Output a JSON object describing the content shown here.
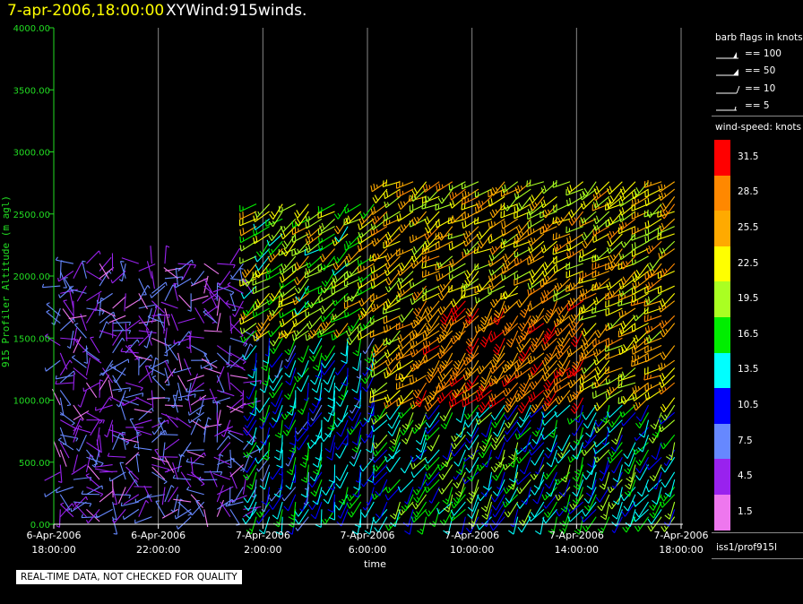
{
  "header": {
    "datetime": "7-apr-2006,18:00:00",
    "plot_title": "XYWind:915winds."
  },
  "footer": {
    "quality_notice": "REAL-TIME DATA, NOT CHECKED FOR QUALITY"
  },
  "legend": {
    "barb_title": "barb flags in knots",
    "barb_items": [
      "== 100",
      "== 50",
      "== 10",
      "== 5"
    ],
    "speed_title": "wind-speed: knots",
    "speed_levels": [
      {
        "label": "31.5",
        "color": "#ff0000"
      },
      {
        "label": "28.5",
        "color": "#ff8800"
      },
      {
        "label": "25.5",
        "color": "#ffaa00"
      },
      {
        "label": "22.5",
        "color": "#ffff00"
      },
      {
        "label": "19.5",
        "color": "#aaff22"
      },
      {
        "label": "16.5",
        "color": "#00ee00"
      },
      {
        "label": "13.5",
        "color": "#00ffff"
      },
      {
        "label": "10.5",
        "color": "#0000ff"
      },
      {
        "label": "7.5",
        "color": "#6688ff"
      },
      {
        "label": "4.5",
        "color": "#9922ee"
      },
      {
        "label": "1.5",
        "color": "#ee77ee"
      }
    ],
    "source": "iss1/prof915l"
  },
  "chart_data": {
    "type": "scatter",
    "subtype": "wind-barb time-height",
    "ylabel": "915 Profiler Altitude (m agl)",
    "xlabel": "time",
    "ylim": [
      0,
      4000
    ],
    "yticks": [
      "0.00",
      "500.00",
      "1000.00",
      "1500.00",
      "2000.00",
      "2500.00",
      "3000.00",
      "3500.00",
      "4000.00"
    ],
    "x_ticks": [
      {
        "date": "6-Apr-2006",
        "time": "18:00:00"
      },
      {
        "date": "6-Apr-2006",
        "time": "22:00:00"
      },
      {
        "date": "7-Apr-2006",
        "time": "2:00:00"
      },
      {
        "date": "7-Apr-2006",
        "time": "6:00:00"
      },
      {
        "date": "7-Apr-2006",
        "time": "10:00:00"
      },
      {
        "date": "7-Apr-2006",
        "time": "14:00:00"
      },
      {
        "date": "7-Apr-2006",
        "time": "18:00:00"
      }
    ],
    "xlim_hours_from_start": [
      0,
      24
    ],
    "grid": "vertical",
    "profile_interval_hours": 0.5,
    "speed_units": "knots",
    "color_scale": "wind-speed: knots",
    "barb_spacing_m": 60,
    "wind_regimes": [
      {
        "t_start": 0.0,
        "t_end": 7.5,
        "z_top": 2100,
        "speed_kt": [
          2,
          9
        ],
        "direction_deg": "variable"
      },
      {
        "t_start": 7.5,
        "t_end": 12.5,
        "z_top": 1500,
        "speed_kt": [
          8,
          17
        ],
        "direction_deg": 200
      },
      {
        "t_start": 7.5,
        "t_end": 12.5,
        "z_top": 2600,
        "speed_kt": [
          14,
          26
        ],
        "direction_deg": 230
      },
      {
        "t_start": 12.5,
        "t_end": 24.0,
        "z_top": 1000,
        "speed_kt": [
          9,
          20
        ],
        "direction_deg": 210
      },
      {
        "t_start": 14.0,
        "t_end": 20.5,
        "z_top": 1800,
        "speed_kt": [
          24,
          32
        ],
        "direction_deg": 220
      },
      {
        "t_start": 12.5,
        "t_end": 24.0,
        "z_top": 2800,
        "speed_kt": [
          19,
          28
        ],
        "direction_deg": 235
      }
    ]
  }
}
